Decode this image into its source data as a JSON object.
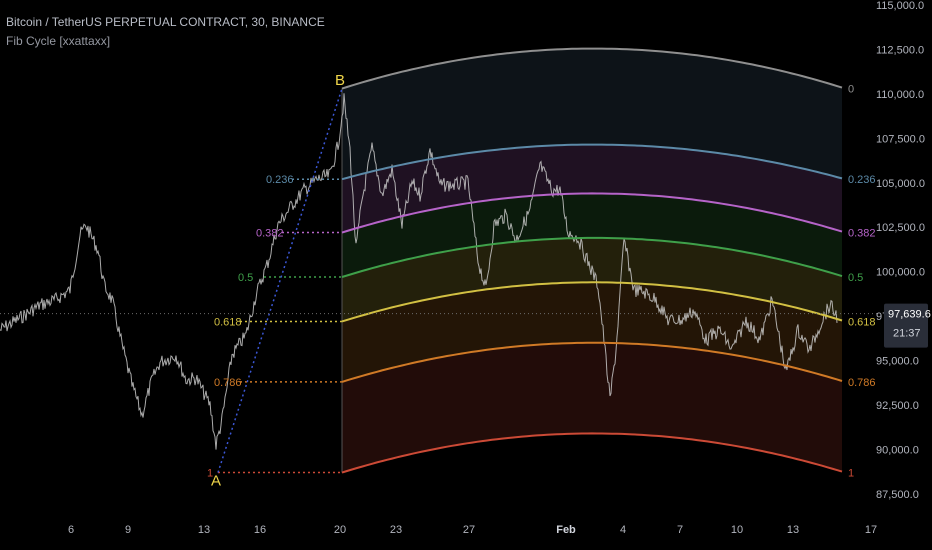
{
  "header": {
    "symbol_line": "Bitcoin / TetherUS PERPETUAL CONTRACT, 30, BINANCE",
    "indicator_line": "Fib Cycle [xxattaxx]"
  },
  "price_badge": {
    "price": "97,639.6",
    "countdown": "21:37",
    "color": "#2a2e39"
  },
  "points": {
    "a": "A",
    "b": "B"
  },
  "chart_data": {
    "type": "line",
    "y_axis": {
      "ticks": [
        "87,500.0",
        "90,000.0",
        "92,500.0",
        "95,000.0",
        "97,500.0",
        "100,000.0",
        "102,500.0",
        "105,000.0",
        "107,500.0",
        "110,000.0",
        "112,500.0",
        "115,000.0"
      ],
      "ylim": [
        86200,
        115000
      ]
    },
    "x_axis": {
      "ticks": [
        "6",
        "9",
        "13",
        "16",
        "20",
        "23",
        "27",
        "Feb",
        "4",
        "7",
        "10",
        "13",
        "17"
      ],
      "bold_tick": "Feb"
    },
    "current_price": 97639.6,
    "anchor_a_price": 88700,
    "anchor_b_price": 110300,
    "fib_levels": [
      {
        "ratio": "0",
        "color": "#8f8f8f",
        "edge_price": 110300,
        "peak_price": 112550
      },
      {
        "ratio": "0.236",
        "color": "#5c8aa8",
        "edge_price": 105200,
        "peak_price": 107150
      },
      {
        "ratio": "0.382",
        "color": "#b664c9",
        "edge_price": 102200,
        "peak_price": 104400
      },
      {
        "ratio": "0.5",
        "color": "#3fa04a",
        "edge_price": 99700,
        "peak_price": 101900
      },
      {
        "ratio": "0.618",
        "color": "#d2c043",
        "edge_price": 97200,
        "peak_price": 99400
      },
      {
        "ratio": "0.786",
        "color": "#d07a26",
        "edge_price": 93800,
        "peak_price": 96000
      },
      {
        "ratio": "1",
        "color": "#cc4a36",
        "edge_price": 88700,
        "peak_price": 90900
      }
    ],
    "price_series_color": "#c9c9c9"
  }
}
